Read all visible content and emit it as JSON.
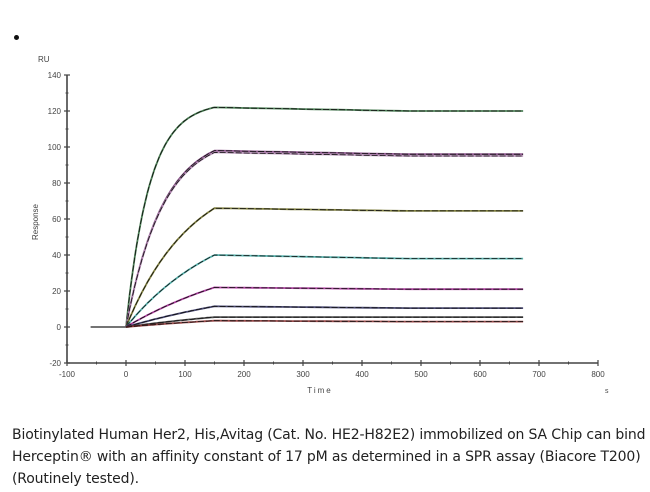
{
  "bullet": "•",
  "chart_data": {
    "type": "line",
    "title": "",
    "xlabel": "Time",
    "xunit": "s",
    "ylabel": "Response",
    "yunit": "RU",
    "xlim": [
      -100,
      800
    ],
    "ylim": [
      -20,
      140
    ],
    "xticks": [
      -100,
      0,
      100,
      200,
      300,
      400,
      500,
      600,
      700,
      800
    ],
    "yticks": [
      -20,
      0,
      20,
      40,
      60,
      80,
      100,
      120,
      140
    ],
    "grid": false,
    "legend": "none",
    "baseline_start": -60,
    "association_end": 150,
    "dissociation_end": 673,
    "series": [
      {
        "name": "curve-1",
        "color": "#2e6b3a",
        "plateau": 122,
        "end": 120,
        "k": 0.025
      },
      {
        "name": "curve-2",
        "color": "#7a3a7a",
        "plateau": 98,
        "end": 96,
        "k": 0.016
      },
      {
        "name": "curve-2b",
        "color": "#b48ab4",
        "plateau": 97,
        "end": 95,
        "k": 0.016
      },
      {
        "name": "curve-3",
        "color": "#6b6b1f",
        "plateau": 66,
        "end": 64.5,
        "k": 0.009
      },
      {
        "name": "curve-4",
        "color": "#3aa6a0",
        "plateau": 40,
        "end": 38,
        "k": 0.006
      },
      {
        "name": "curve-5",
        "color": "#a0208f",
        "plateau": 22,
        "end": 21,
        "k": 0.004
      },
      {
        "name": "curve-6",
        "color": "#2a2a5a",
        "plateau": 11.5,
        "end": 10.5,
        "k": 0.003
      },
      {
        "name": "curve-7",
        "color": "#333333",
        "plateau": 5.5,
        "end": 5.5,
        "k": 0.003
      },
      {
        "name": "curve-8",
        "color": "#8a2a2a",
        "plateau": 3.5,
        "end": 3,
        "k": 0.003
      }
    ],
    "fit_color": "#111111",
    "axis_color": "#444444",
    "tick_label_color": "#444444"
  },
  "caption": {
    "line1": "Biotinylated Human Her2, His,Avitag (Cat. No. HE2-H82E2) immobilized on SA Chip can bind",
    "line2": "Herceptin® with an affinity constant of 17 pM as determined in a SPR assay (Biacore T200)",
    "line3": "(Routinely tested)."
  }
}
